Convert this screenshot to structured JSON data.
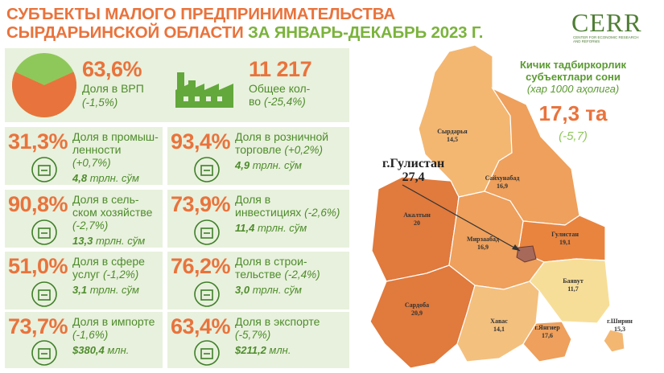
{
  "header": {
    "title_line1": "СУБЪЕКТЫ МАЛОГО ПРЕДПРИНИМАТЕЛЬСТВА",
    "title_line2a": "СЫРДАРЬИНСКОЙ ОБЛАСТИ ",
    "title_line2b": "ЗА ЯНВАРЬ-ДЕКАБРЬ 2023 Г."
  },
  "logo": {
    "word": "CERR",
    "subtitle": "Center for economic research and reforms"
  },
  "top": {
    "gdp_share": {
      "value": "63,6%",
      "label": "Доля в ВРП",
      "change": "(-1,5%)",
      "fraction": 0.636
    },
    "total": {
      "value": "11 217",
      "label1": "Общее кол-",
      "label2": "во",
      "change": "(-25,4%)"
    }
  },
  "cards": [
    {
      "value": "31,3%",
      "l1": "Доля в промыш-",
      "l2": "ленности",
      "change": "(+0,7%)",
      "amount": "4,8",
      "unit": "трлн. сўм",
      "icon": "factory-icon"
    },
    {
      "value": "93,4%",
      "l1": "Доля в розничной",
      "l2": "торговле",
      "change": "(+0,2%)",
      "amount": "4,9",
      "unit": "трлн. сўм",
      "icon": "retail-icon"
    },
    {
      "value": "90,8%",
      "l1": "Доля в сель-",
      "l2": "ском хозяйстве",
      "change": "(-2,7%)",
      "amount": "13,3",
      "unit": "трлн. сўм",
      "icon": "agriculture-icon"
    },
    {
      "value": "73,9%",
      "l1": "Доля в",
      "l2": "инвестициях",
      "change": "(-2,6%)",
      "amount": "11,4",
      "unit": "трлн. сўм",
      "icon": "investment-icon"
    },
    {
      "value": "51,0%",
      "l1": "Доля в сфере",
      "l2": "услуг",
      "change": "(-1,2%)",
      "amount": "3,1",
      "unit": "трлн. сўм",
      "icon": "services-icon"
    },
    {
      "value": "76,2%",
      "l1": "Доля в строи-",
      "l2": "тельстве",
      "change": "(-2,4%)",
      "amount": "3,0",
      "unit": "трлн. сўм",
      "icon": "construction-icon"
    },
    {
      "value": "73,7%",
      "l1": "Доля в импорте",
      "l2": "",
      "change": "(-1,6%)",
      "amount": "$380,4",
      "unit": "млн.",
      "icon": "import-icon"
    },
    {
      "value": "63,4%",
      "l1": "Доля в экспорте",
      "l2": "",
      "change": "(-5,7%)",
      "amount": "$211,2",
      "unit": "млн.",
      "icon": "export-icon"
    }
  ],
  "map": {
    "caption1": "Кичик тадбиркорлик",
    "caption2": "субъектлари сони",
    "caption3": "(хар 1000 аҳолига)",
    "total": "17,3 та",
    "total_change": "(-5,7)",
    "callout_name": "г.Гулистан",
    "callout_value": "27,4",
    "regions": [
      {
        "name": "Сырдарья",
        "value": "14,5",
        "color": "#f3b772"
      },
      {
        "name": "Сайхунабад",
        "value": "16,9",
        "color": "#eea05c"
      },
      {
        "name": "Гулистан",
        "value": "19,1",
        "color": "#e9843f"
      },
      {
        "name": "Акалтын",
        "value": "20",
        "color": "#e07a3d"
      },
      {
        "name": "Мирзаабад",
        "value": "16,9",
        "color": "#eea05c"
      },
      {
        "name": "Баявут",
        "value": "11,7",
        "color": "#f7de98"
      },
      {
        "name": "Сардоба",
        "value": "20,9",
        "color": "#e07a3d"
      },
      {
        "name": "Хавас",
        "value": "14,1",
        "color": "#f4c07e"
      },
      {
        "name": "г.Янгиер",
        "value": "17,6",
        "color": "#eea05c"
      },
      {
        "name": "г.Ширин",
        "value": "15,3",
        "color": "#f3b772"
      }
    ]
  }
}
